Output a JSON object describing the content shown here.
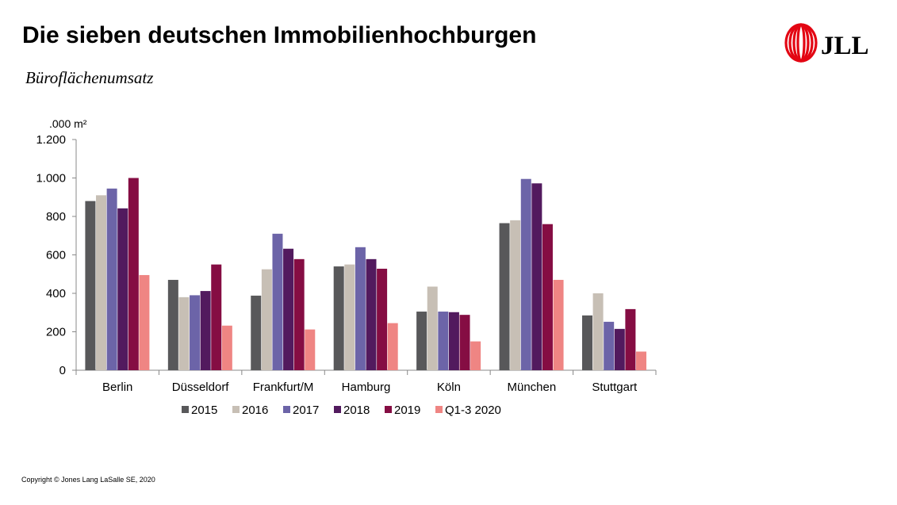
{
  "header": {
    "title": "Die sieben deutschen Immobilienhochburgen",
    "subtitle": "Büroflächenumsatz",
    "logo_text": "JLL",
    "logo_color": "#e30613"
  },
  "footer": {
    "copyright": "Copyright © Jones Lang LaSalle SE, 2020"
  },
  "chart_data": {
    "type": "bar",
    "title": "",
    "xlabel": "",
    "ylabel": ".000 m²",
    "ylim": [
      0,
      1200
    ],
    "yticks": [
      0,
      200,
      400,
      600,
      800,
      1000,
      1200
    ],
    "ytick_labels": [
      "0",
      "200",
      "400",
      "600",
      "800",
      "1.000",
      "1.200"
    ],
    "categories": [
      "Berlin",
      "Düsseldorf",
      "Frankfurt/M",
      "Hamburg",
      "Köln",
      "München",
      "Stuttgart"
    ],
    "grid": false,
    "legend_position": "bottom",
    "series": [
      {
        "name": "2015",
        "color": "#58585a",
        "values": [
          880,
          470,
          388,
          540,
          305,
          765,
          285
        ]
      },
      {
        "name": "2016",
        "color": "#c7bfb5",
        "values": [
          910,
          380,
          525,
          550,
          435,
          780,
          400
        ]
      },
      {
        "name": "2017",
        "color": "#6c64a8",
        "values": [
          945,
          390,
          710,
          640,
          305,
          995,
          252
        ]
      },
      {
        "name": "2018",
        "color": "#521a5e",
        "values": [
          842,
          412,
          632,
          578,
          302,
          972,
          215
        ]
      },
      {
        "name": "2019",
        "color": "#850d43",
        "values": [
          1000,
          550,
          578,
          528,
          288,
          760,
          318
        ]
      },
      {
        "name": "Q1-3 2020",
        "color": "#ef8583",
        "values": [
          495,
          232,
          212,
          245,
          150,
          470,
          97
        ]
      }
    ]
  }
}
